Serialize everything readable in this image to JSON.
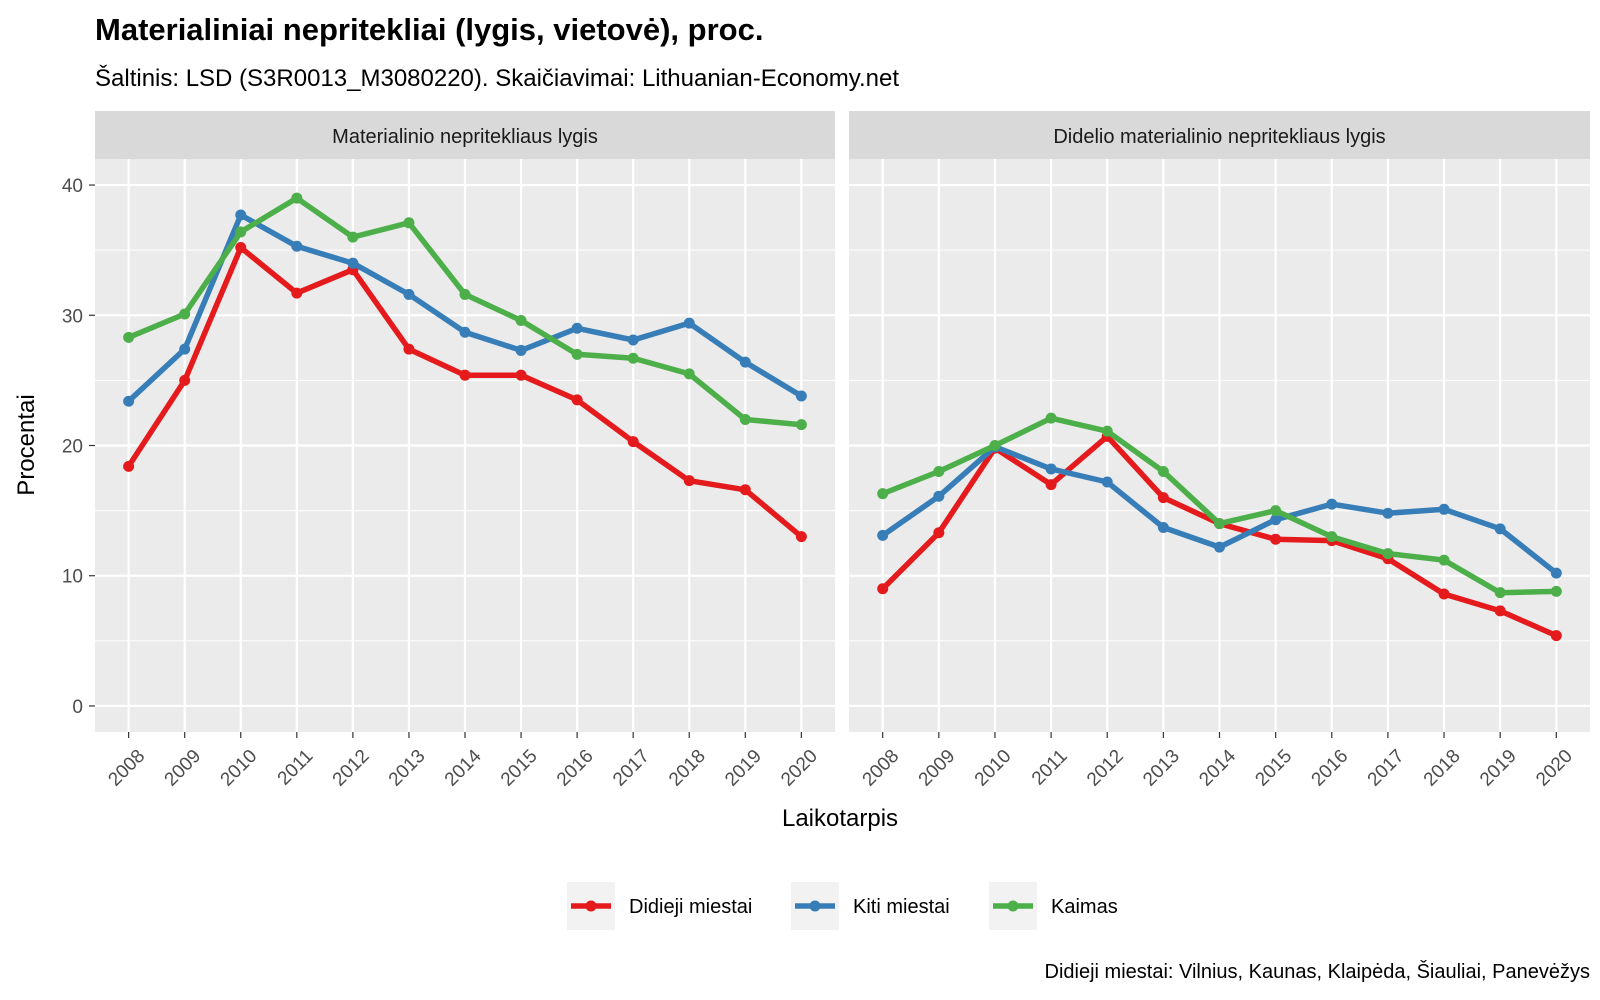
{
  "title": "Materialiniai nepritekliai (lygis, vietovė), proc.",
  "subtitle": "Šaltinis: LSD (S3R0013_M3080220). Skaičiavimai: Lithuanian-Economy.net",
  "caption": "Didieji miestai: Vilnius, Kaunas, Klaipėda, Šiauliai, Panevėžys",
  "x_axis_title": "Laikotarpis",
  "y_axis_title": "Procentai",
  "legend": [
    {
      "name": "Didieji miestai",
      "color": "#e41a1c"
    },
    {
      "name": "Kiti miestai",
      "color": "#377eb8"
    },
    {
      "name": "Kaimas",
      "color": "#4daf4a"
    }
  ],
  "chart_data": [
    {
      "type": "line",
      "title": "Materialinio nepritekliaus lygis",
      "x": [
        "2008",
        "2009",
        "2010",
        "2011",
        "2012",
        "2013",
        "2014",
        "2015",
        "2016",
        "2017",
        "2018",
        "2019",
        "2020"
      ],
      "ylim": [
        -2,
        42
      ],
      "yticks": [
        0,
        10,
        20,
        30,
        40
      ],
      "grid": true,
      "series": [
        {
          "name": "Didieji miestai",
          "color": "#e41a1c",
          "values": [
            18.4,
            25.0,
            35.2,
            31.7,
            33.5,
            27.4,
            25.4,
            25.4,
            23.5,
            20.3,
            17.3,
            16.6,
            13.0
          ]
        },
        {
          "name": "Kiti miestai",
          "color": "#377eb8",
          "values": [
            23.4,
            27.4,
            37.7,
            35.3,
            34.0,
            31.6,
            28.7,
            27.3,
            29.0,
            28.1,
            29.4,
            26.4,
            23.8
          ]
        },
        {
          "name": "Kaimas",
          "color": "#4daf4a",
          "values": [
            28.3,
            30.1,
            36.4,
            39.0,
            36.0,
            37.1,
            31.6,
            29.6,
            27.0,
            26.7,
            25.5,
            22.0,
            21.6
          ]
        }
      ]
    },
    {
      "type": "line",
      "title": "Didelio materialinio nepritekliaus lygis",
      "x": [
        "2008",
        "2009",
        "2010",
        "2011",
        "2012",
        "2013",
        "2014",
        "2015",
        "2016",
        "2017",
        "2018",
        "2019",
        "2020"
      ],
      "ylim": [
        -2,
        42
      ],
      "yticks": [
        0,
        10,
        20,
        30,
        40
      ],
      "grid": true,
      "series": [
        {
          "name": "Didieji miestai",
          "color": "#e41a1c",
          "values": [
            9.0,
            13.3,
            19.8,
            17.0,
            20.7,
            16.0,
            14.0,
            12.8,
            12.7,
            11.3,
            8.6,
            7.3,
            5.4
          ]
        },
        {
          "name": "Kiti miestai",
          "color": "#377eb8",
          "values": [
            13.1,
            16.1,
            19.9,
            18.2,
            17.2,
            13.7,
            12.2,
            14.3,
            15.5,
            14.8,
            15.1,
            13.6,
            10.2
          ]
        },
        {
          "name": "Kaimas",
          "color": "#4daf4a",
          "values": [
            16.3,
            18.0,
            20.0,
            22.1,
            21.1,
            18.0,
            14.0,
            15.0,
            13.0,
            11.7,
            11.2,
            8.7,
            8.8
          ]
        }
      ]
    }
  ]
}
